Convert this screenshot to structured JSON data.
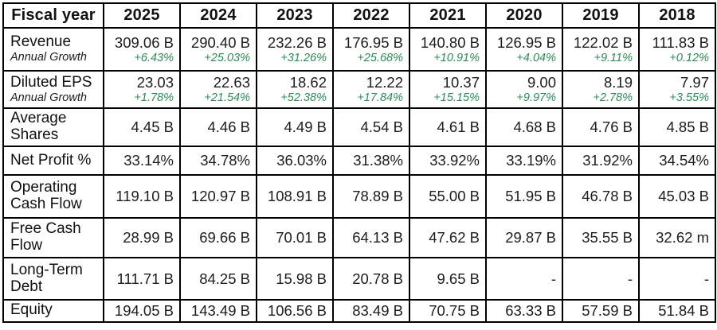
{
  "chart_data": {
    "type": "table",
    "corner_label": "Fiscal year",
    "columns": [
      "2025",
      "2024",
      "2023",
      "2022",
      "2021",
      "2020",
      "2019",
      "2018"
    ],
    "rows": [
      {
        "metric": "Revenue",
        "sub_metric": "Annual Growth",
        "values": [
          "309.06 B",
          "290.40 B",
          "232.26 B",
          "176.95 B",
          "140.80 B",
          "126.95 B",
          "122.02 B",
          "111.83 B"
        ],
        "growth": [
          "+6.43%",
          "+25.03%",
          "+31.26%",
          "+25.68%",
          "+10.91%",
          "+4.04%",
          "+9.11%",
          "+0.12%"
        ]
      },
      {
        "metric": "Diluted EPS",
        "sub_metric": "Annual Growth",
        "values": [
          "23.03",
          "22.63",
          "18.62",
          "12.22",
          "10.37",
          "9.00",
          "8.19",
          "7.97"
        ],
        "growth": [
          "+1.78%",
          "+21.54%",
          "+52.38%",
          "+17.84%",
          "+15.15%",
          "+9.97%",
          "+2.78%",
          "+3.55%"
        ]
      },
      {
        "metric": "Average Shares",
        "values": [
          "4.45 B",
          "4.46 B",
          "4.49 B",
          "4.54 B",
          "4.61 B",
          "4.68 B",
          "4.76 B",
          "4.85 B"
        ]
      },
      {
        "metric": "Net Profit %",
        "values": [
          "33.14%",
          "34.78%",
          "36.03%",
          "31.38%",
          "33.92%",
          "33.19%",
          "31.92%",
          "34.54%"
        ]
      },
      {
        "metric": "Operating Cash Flow",
        "values": [
          "119.10 B",
          "120.97 B",
          "108.91 B",
          "78.89 B",
          "55.00 B",
          "51.95 B",
          "46.78 B",
          "45.03 B"
        ]
      },
      {
        "metric": "Free Cash Flow",
        "values": [
          "28.99 B",
          "69.66 B",
          "70.01 B",
          "64.13 B",
          "47.62 B",
          "29.87 B",
          "35.55 B",
          "32.62 m"
        ]
      },
      {
        "metric": "Long-Term Debt",
        "values": [
          "111.71 B",
          "84.25 B",
          "15.98 B",
          "20.78 B",
          "9.65 B",
          "-",
          "-",
          "-"
        ]
      },
      {
        "metric": "Equity",
        "values": [
          "194.05 B",
          "143.49 B",
          "106.56 B",
          "83.49 B",
          "70.75 B",
          "63.33 B",
          "57.59 B",
          "51.84 B"
        ]
      }
    ]
  },
  "colors": {
    "growth_green": "#2e8b57",
    "value_text": "#1d1d1d",
    "header_text": "#111111",
    "border": "#000000",
    "background": "#ffffff"
  }
}
